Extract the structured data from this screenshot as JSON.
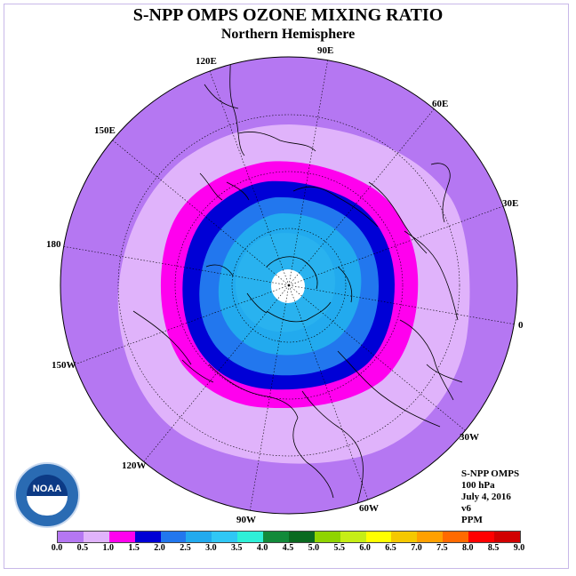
{
  "title": "S-NPP OMPS OZONE MIXING RATIO",
  "subtitle": "Northern Hemisphere",
  "longitude_labels": [
    "90E",
    "60E",
    "30E",
    "0",
    "30W",
    "60W",
    "90W",
    "120W",
    "150W",
    "180",
    "150E",
    "120E"
  ],
  "info": {
    "instrument": "S-NPP OMPS",
    "level": "100 hPa",
    "date": "July 4, 2016",
    "version": "v6",
    "units": "PPM"
  },
  "logo": {
    "text": "NOAA"
  },
  "colorbar": {
    "labels": [
      "0.0",
      "0.5",
      "1.0",
      "1.5",
      "2.0",
      "2.5",
      "3.0",
      "3.5",
      "4.0",
      "4.5",
      "5.0",
      "5.5",
      "6.0",
      "6.5",
      "7.0",
      "7.5",
      "8.0",
      "8.5",
      "9.0"
    ],
    "colors": [
      "#b577f2",
      "#e0b3fb",
      "#ff00ee",
      "#0000d6",
      "#2277ee",
      "#22aaee",
      "#30c7f5",
      "#2ef0d8",
      "#128a3a",
      "#0a6a20",
      "#8fd400",
      "#c6ee16",
      "#ffff00",
      "#f5c800",
      "#ffa000",
      "#ff6a00",
      "#ff0000",
      "#d10000",
      "#8a5a3a"
    ]
  },
  "colors": {
    "band_0_0.5": "#b577f2",
    "band_0.5_1.0": "#e0b3fb",
    "band_1.0_1.5": "#ff00ee",
    "band_1.5_2.0": "#0000d6",
    "band_2.0_2.5": "#2277ee",
    "band_2.5_3.0": "#22aaee",
    "no_data_pole": "#ffffff"
  }
}
